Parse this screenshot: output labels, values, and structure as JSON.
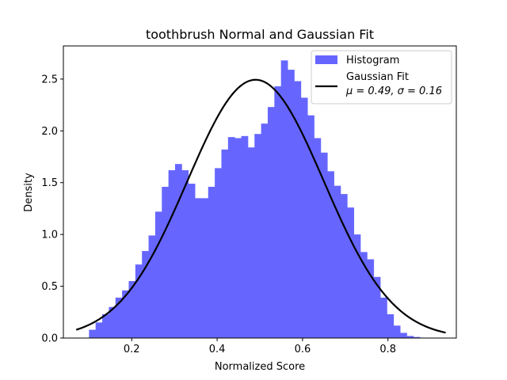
{
  "chart_data": {
    "type": "bar",
    "title": "toothbrush Normal and Gaussian Fit",
    "xlabel": "Normalized Score",
    "ylabel": "Density",
    "xlim": [
      0.04,
      0.96
    ],
    "ylim": [
      0,
      2.82
    ],
    "xticks": [
      0.2,
      0.4,
      0.6,
      0.8
    ],
    "xtick_labels": [
      "0.2",
      "0.4",
      "0.6",
      "0.8"
    ],
    "yticks": [
      0.0,
      0.5,
      1.0,
      1.5,
      2.0,
      2.5
    ],
    "ytick_labels": [
      "0.0",
      "0.5",
      "1.0",
      "1.5",
      "2.0",
      "2.5"
    ],
    "grid": false,
    "legend_position": "top-right",
    "histogram": {
      "name": "Histogram",
      "color": "#6666ff",
      "bin_start": 0.1,
      "bin_width": 0.0155,
      "values": [
        0.08,
        0.15,
        0.23,
        0.3,
        0.39,
        0.46,
        0.55,
        0.71,
        0.84,
        0.99,
        1.22,
        1.46,
        1.62,
        1.68,
        1.62,
        1.49,
        1.35,
        1.35,
        1.46,
        1.64,
        1.82,
        1.94,
        1.93,
        1.95,
        1.84,
        1.97,
        2.07,
        2.23,
        2.43,
        2.68,
        2.59,
        2.48,
        2.32,
        2.15,
        1.93,
        1.79,
        1.61,
        1.47,
        1.39,
        1.26,
        1.0,
        0.83,
        0.76,
        0.59,
        0.39,
        0.23,
        0.12,
        0.05,
        0.02,
        0.01
      ]
    },
    "gaussian_fit": {
      "name_line1": "Gaussian Fit",
      "name_line2": "μ = 0.49,  σ = 0.16",
      "color": "#000000",
      "mu": 0.49,
      "sigma": 0.16,
      "x_start": 0.07,
      "x_end": 0.935
    }
  }
}
